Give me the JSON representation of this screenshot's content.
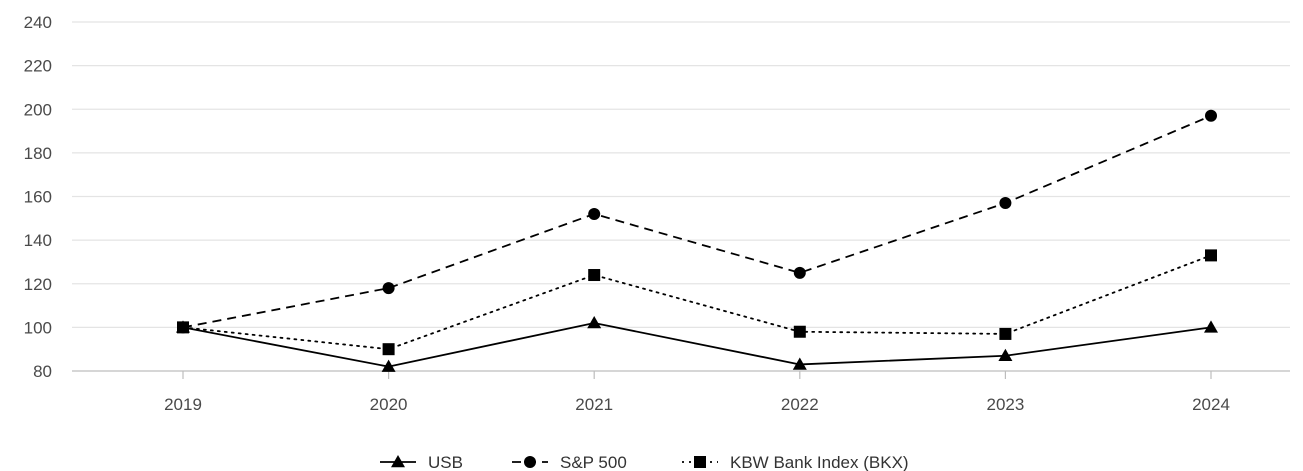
{
  "chart_data": {
    "type": "line",
    "x": [
      "2019",
      "2020",
      "2021",
      "2022",
      "2023",
      "2024"
    ],
    "ylim": [
      80,
      240
    ],
    "yticks": [
      80,
      100,
      120,
      140,
      160,
      180,
      200,
      220,
      240
    ],
    "grid": "horizontal",
    "legend_position": "bottom-center",
    "series": [
      {
        "name": "USB",
        "values": [
          100,
          82,
          102,
          83,
          87,
          100
        ],
        "line_style": "solid",
        "marker": "triangle",
        "color": "#000000"
      },
      {
        "name": "S&P 500",
        "values": [
          100,
          118,
          152,
          125,
          157,
          197
        ],
        "line_style": "dashed",
        "marker": "circle",
        "color": "#000000"
      },
      {
        "name": "KBW Bank Index (BKX)",
        "values": [
          100,
          90,
          124,
          98,
          97,
          133
        ],
        "line_style": "dotted",
        "marker": "square",
        "color": "#000000"
      }
    ]
  }
}
